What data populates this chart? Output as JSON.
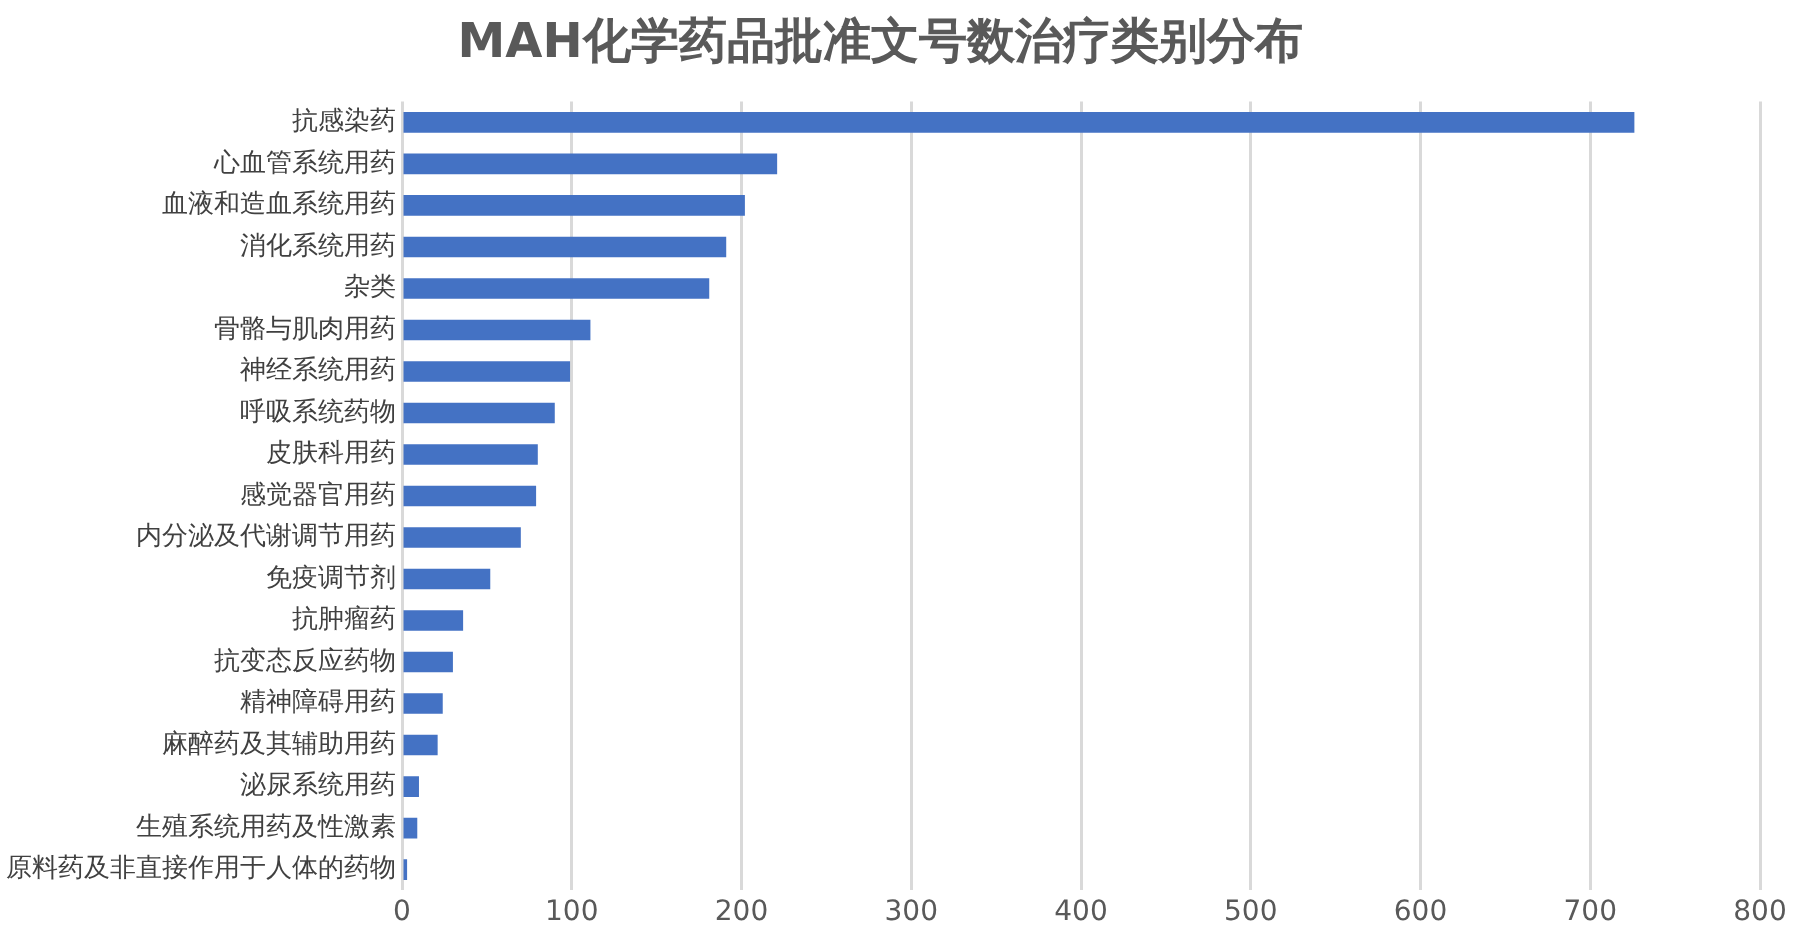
{
  "chart_data": {
    "type": "bar",
    "orientation": "horizontal",
    "title": "MAH化学药品批准文号数治疗类别分布",
    "categories": [
      "抗感染药",
      "心血管系统用药",
      "血液和造血系统用药",
      "消化系统用药",
      "杂类",
      "骨骼与肌肉用药",
      "神经系统用药",
      "呼吸系统药物",
      "皮肤科用药",
      "感觉器官用药",
      "内分泌及代谢调节用药",
      "免疫调节剂",
      "抗肿瘤药",
      "抗变态反应药物",
      "精神障碍用药",
      "麻醉药及其辅助用药",
      "泌尿系统用药",
      "生殖系统用药及性激素",
      "原料药及非直接作用于人体的药物"
    ],
    "values": [
      726,
      221,
      202,
      191,
      181,
      111,
      99,
      90,
      80,
      79,
      70,
      52,
      36,
      30,
      24,
      21,
      10,
      9,
      3
    ],
    "color": "#4472c4",
    "xlim": [
      0,
      800
    ],
    "xticks": [
      0,
      100,
      200,
      300,
      400,
      500,
      600,
      700,
      800
    ],
    "grid": "x",
    "legend": false
  }
}
